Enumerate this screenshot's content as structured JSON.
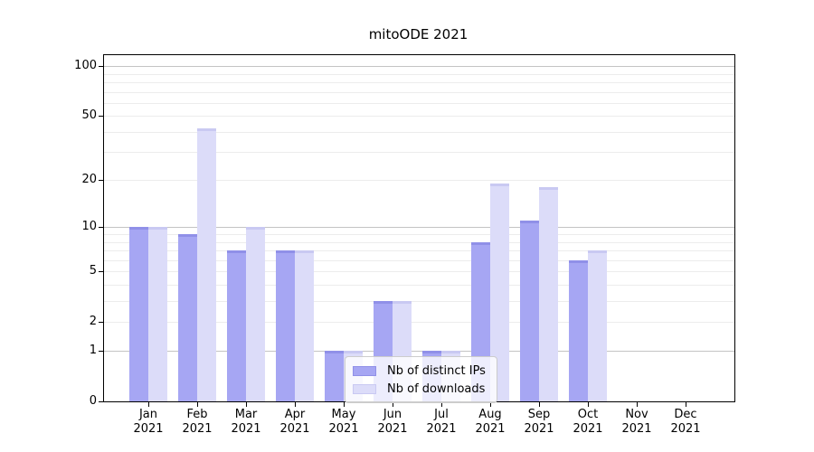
{
  "title": "mitoODE 2021",
  "chart_data": {
    "type": "bar",
    "title": "mitoODE 2021",
    "scale": "log1p",
    "categories": [
      "Jan",
      "Feb",
      "Mar",
      "Apr",
      "May",
      "Jun",
      "Jul",
      "Aug",
      "Sep",
      "Oct",
      "Nov",
      "Dec"
    ],
    "x_year_label": "2021",
    "series": [
      {
        "name": "Nb of distinct IPs",
        "color": "#a6a6f3",
        "edge_color": "#9090e8",
        "values": [
          10,
          9,
          7,
          7,
          1,
          3,
          1,
          8,
          11,
          6,
          0,
          0
        ]
      },
      {
        "name": "Nb of downloads",
        "color": "#dcdcf9",
        "edge_color": "#c9c9f2",
        "values": [
          10,
          42,
          10,
          7,
          1,
          3,
          1,
          19,
          18,
          7,
          0,
          0
        ]
      }
    ],
    "y_ticks": [
      0,
      1,
      2,
      5,
      10,
      20,
      50,
      100
    ],
    "y_major": [
      1,
      10,
      100
    ],
    "y_minor": [
      3,
      4,
      6,
      7,
      8,
      9,
      30,
      40,
      60,
      70,
      80,
      90
    ],
    "ylim": [
      0,
      116.6
    ],
    "grid": true,
    "legend_position": "lower center",
    "colors": {
      "major_grid": "#c4c4c4",
      "minor_grid": "#ececec",
      "spine": "#000000",
      "background": "#ffffff"
    }
  }
}
